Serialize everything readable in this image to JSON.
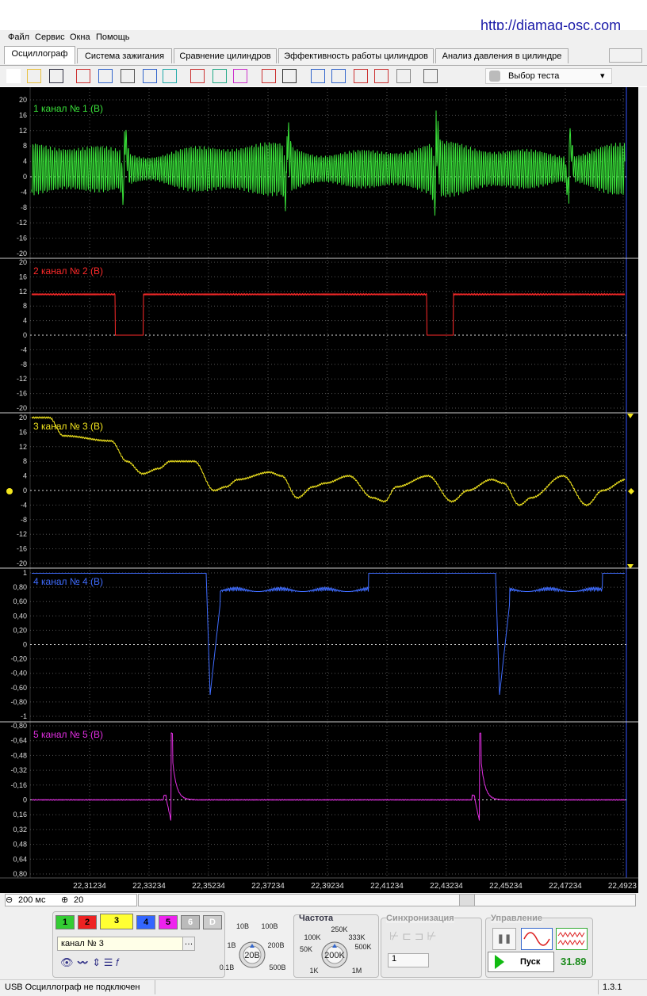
{
  "header": {
    "url": "http://diamag-osc.com"
  },
  "menu": [
    "Файл",
    "Сервис",
    "Окна",
    "Помощь"
  ],
  "tabs": [
    "Осциллограф",
    "Система зажигания",
    "Сравнение цилиндров",
    "Эффективность работы цилиндров",
    "Анализ давления в цилиндре"
  ],
  "toolbar": {
    "test_select": "Выбор теста"
  },
  "channels": [
    {
      "label": "1  канал № 1 (В)",
      "color": "#39e039",
      "yticks": [
        "20",
        "16",
        "12",
        "8",
        "4",
        "0",
        "-4",
        "-8",
        "-12",
        "-16",
        "-20"
      ]
    },
    {
      "label": "2  канал № 2 (В)",
      "color": "#ff2a2a",
      "yticks": [
        "20",
        "16",
        "12",
        "8",
        "4",
        "0",
        "-4",
        "-8",
        "-12",
        "-16",
        "-20"
      ]
    },
    {
      "label": "3  канал № 3 (В)",
      "color": "#f2e51e",
      "yticks": [
        "20",
        "16",
        "12",
        "8",
        "4",
        "0",
        "-4",
        "-8",
        "-12",
        "-16",
        "-20"
      ]
    },
    {
      "label": "4  канал № 4 (В)",
      "color": "#3f6cff",
      "yticks": [
        "1",
        "0,80",
        "0,60",
        "0,40",
        "0,20",
        "0",
        "-0,20",
        "-0,40",
        "-0,60",
        "-0,80",
        "-1"
      ]
    },
    {
      "label": "5  канал № 5 (В)",
      "color": "#e12ee1",
      "yticks": [
        "-0,80",
        "-0,64",
        "-0,48",
        "-0,32",
        "-0,16",
        "0",
        "0,16",
        "0,32",
        "0,48",
        "0,64",
        "0,80"
      ]
    }
  ],
  "time_axis": [
    "22,31234",
    "22,33234",
    "22,35234",
    "22,37234",
    "22,39234",
    "22,41234",
    "22,43234",
    "22,45234",
    "22,47234",
    "22,4923"
  ],
  "controls": {
    "timebase": "200 мс",
    "zoom": "20",
    "channel_buttons": [
      "1",
      "2",
      "3",
      "4",
      "5",
      "6",
      "D"
    ],
    "channel_name": "канал № 3",
    "volt": {
      "value": "20В",
      "labels": [
        "10В",
        "100В",
        "1В",
        "200В",
        "0.1В",
        "500В"
      ]
    },
    "freq": {
      "title": "Частота",
      "value": "200K",
      "labels": [
        "250K",
        "100K",
        "333K",
        "50K",
        "500K",
        "1K",
        "1M"
      ]
    },
    "sync": {
      "title": "Синхронизация",
      "value": "1"
    },
    "control": {
      "title": "Управление",
      "start": "Пуск",
      "reading": "31.89"
    }
  },
  "status": {
    "text": "USB Осциллограф не подключен",
    "version": "1.3.1"
  }
}
